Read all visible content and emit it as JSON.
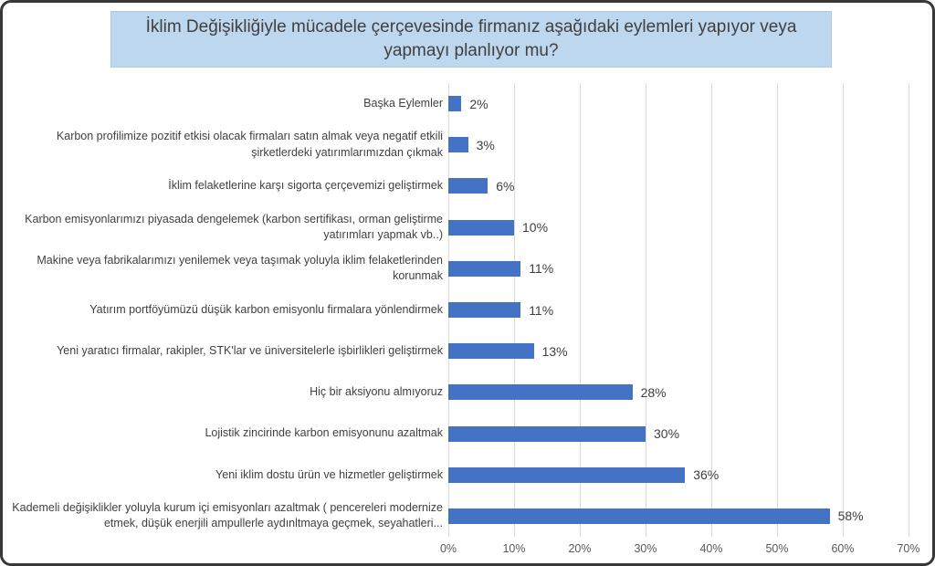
{
  "colors": {
    "bar": "#4472C4",
    "title_bg": "#BDD7EE",
    "title_border": "#A9CCE9",
    "gridline": "#D9D9D9",
    "text": "#404040",
    "axis_text": "#595959"
  },
  "chart_data": {
    "type": "bar",
    "orientation": "horizontal",
    "title": "İklim Değişikliğiyle mücadele çerçevesinde firmanız aşağıdaki eylemleri yapıyor veya yapmayı planlıyor mu?",
    "categories": [
      "Başka Eylemler",
      "Karbon profilimize pozitif etkisi olacak firmaları satın almak veya negatif etkili şirketlerdeki yatırımlarımızdan çıkmak",
      "İklim felaketlerine karşı sigorta çerçevemizi geliştirmek",
      "Karbon emisyonlarımızı piyasada dengelemek (karbon sertifikası, orman geliştirme yatırımları yapmak vb..)",
      "Makine veya fabrikalarımızı yenilemek veya taşımak yoluyla iklim felaketlerinden korunmak",
      "Yatırım portföyümüzü düşük karbon emisyonlu firmalara yönlendirmek",
      "Yeni yaratıcı firmalar, rakipler, STK'lar ve üniversitelerle işbirlikleri geliştirmek",
      "Hiç bir aksiyonu almıyoruz",
      "Lojistik zincirinde karbon emisyonunu azaltmak",
      "Yeni iklim dostu ürün ve hizmetler geliştirmek",
      "Kademeli değişiklikler yoluyla kurum içi emisyonları azaltmak ( pencereleri modernize etmek, düşük enerjili ampullerle aydınltmaya geçmek, seyahatleri..."
    ],
    "values": [
      2,
      3,
      6,
      10,
      11,
      11,
      13,
      28,
      30,
      36,
      58
    ],
    "value_labels": [
      "2%",
      "3%",
      "6%",
      "10%",
      "11%",
      "11%",
      "13%",
      "28%",
      "30%",
      "36%",
      "58%"
    ],
    "xlim": [
      0,
      70
    ],
    "x_tick_labels": [
      "0%",
      "10%",
      "20%",
      "30%",
      "40%",
      "50%",
      "60%",
      "70%"
    ],
    "xlabel": "",
    "ylabel": "",
    "grid": "vertical",
    "legend": "none"
  }
}
